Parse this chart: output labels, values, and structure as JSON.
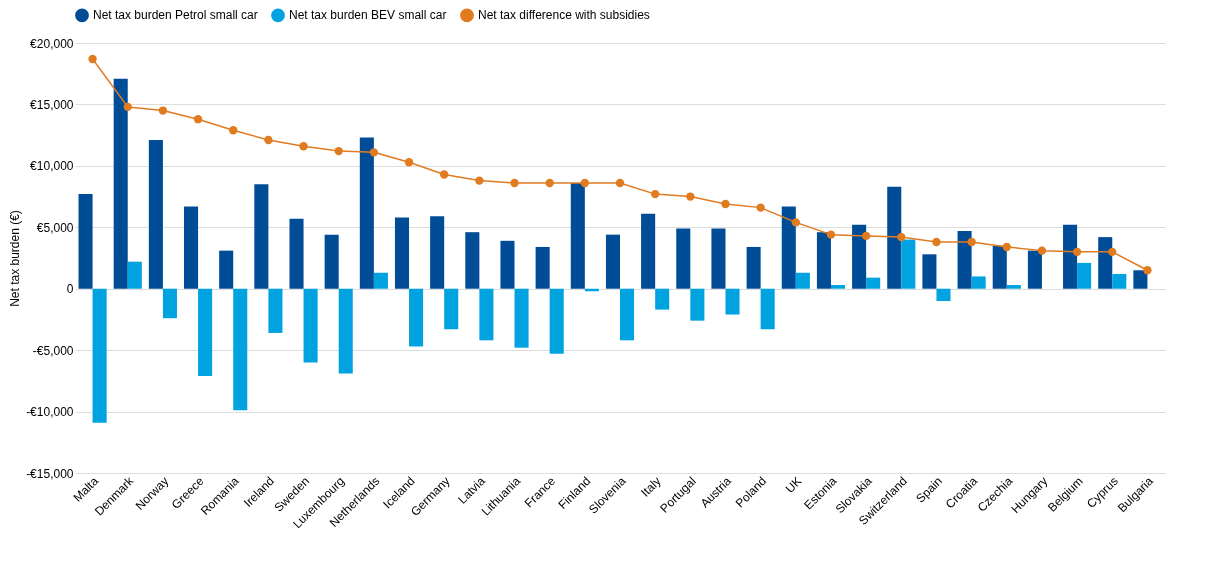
{
  "chart_data": {
    "type": "bar",
    "ylabel": "Net tax burden (€)",
    "categories": [
      "Malta",
      "Denmark",
      "Norway",
      "Greece",
      "Romania",
      "Ireland",
      "Sweden",
      "Luxembourg",
      "Netherlands",
      "Iceland",
      "Germany",
      "Latvia",
      "Lithuania",
      "France",
      "Finland",
      "Slovenia",
      "Italy",
      "Portugal",
      "Austria",
      "Poland",
      "UK",
      "Estonia",
      "Slovakia",
      "Switzerland",
      "Spain",
      "Croatia",
      "Czechia",
      "Hungary",
      "Belgium",
      "Cyprus",
      "Bulgaria"
    ],
    "series": [
      {
        "name": "Net tax burden Petrol small car",
        "color": "#004c97",
        "values": [
          7700,
          17100,
          12100,
          6700,
          3100,
          8500,
          5700,
          4400,
          12300,
          5800,
          5900,
          4600,
          3900,
          3400,
          8600,
          4400,
          6100,
          4900,
          4900,
          3400,
          6700,
          4600,
          5200,
          8300,
          2800,
          4700,
          3500,
          3100,
          5200,
          4200,
          1500
        ]
      },
      {
        "name": "Net tax burden BEV small car",
        "color": "#00a3e0",
        "values": [
          -10900,
          2200,
          -2400,
          -7100,
          -9900,
          -3600,
          -6000,
          -6900,
          1300,
          -4700,
          -3300,
          -4200,
          -4800,
          -5300,
          -200,
          -4200,
          -1700,
          -2600,
          -2100,
          -3300,
          1300,
          300,
          900,
          4000,
          -1000,
          1000,
          300,
          null,
          2100,
          1200,
          null
        ]
      },
      {
        "name": "Net tax difference with subsidies",
        "color": "#e07b20",
        "type": "line",
        "marker": "circle",
        "line_style": "solid",
        "values": [
          18700,
          14800,
          14500,
          13800,
          12900,
          12100,
          11600,
          11200,
          11100,
          10300,
          9300,
          8800,
          8600,
          8600,
          8600,
          8600,
          7700,
          7500,
          6900,
          6600,
          5400,
          4400,
          4300,
          4200,
          3800,
          3800,
          3400,
          3100,
          3000,
          3000,
          1500
        ]
      }
    ],
    "ylim": [
      -15000,
      20000
    ],
    "yticks": [
      {
        "value": -15000,
        "label": "-€15,000"
      },
      {
        "value": -10000,
        "label": "-€10,000"
      },
      {
        "value": -5000,
        "label": "-€5,000"
      },
      0,
      {
        "value": 5000,
        "label": "€5,000"
      },
      {
        "value": 10000,
        "label": "€10,000"
      },
      {
        "value": 15000,
        "label": "€15,000"
      },
      {
        "value": 20000,
        "label": "€20,000"
      }
    ],
    "grid": "y",
    "legend": "top"
  }
}
